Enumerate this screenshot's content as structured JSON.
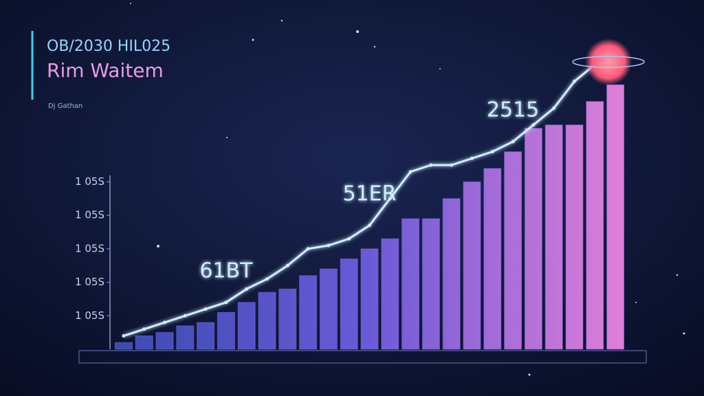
{
  "header": {
    "title": "OB/2030 HIL025",
    "subtitle": "Rim Waitem",
    "caption": "Dj Gathan"
  },
  "chart_data": {
    "type": "bar",
    "categories": [
      null,
      null,
      null,
      null,
      null,
      null,
      null,
      null,
      null,
      null,
      null,
      null,
      null,
      null,
      null,
      null,
      null,
      null,
      null,
      null,
      null,
      null,
      null,
      null,
      null
    ],
    "series": [
      {
        "type": "bar",
        "color": "#7a63d8",
        "values": [
          2,
          4,
          5,
          7,
          8,
          11,
          14,
          17,
          18,
          22,
          24,
          27,
          30,
          33,
          39,
          39,
          45,
          50,
          54,
          59,
          66,
          67,
          67,
          74,
          79
        ]
      },
      {
        "type": "line",
        "color": "#cfeeff",
        "values": [
          4,
          6,
          8,
          10,
          12,
          14,
          18,
          21,
          25,
          30,
          31,
          33,
          37,
          45,
          53,
          55,
          55,
          57,
          59,
          62,
          67,
          72,
          80,
          85,
          null
        ]
      }
    ],
    "ylim": [
      0,
      85
    ],
    "yticks": [
      {
        "value": 10,
        "label": "1 05S"
      },
      {
        "value": 20,
        "label": "1 05S"
      },
      {
        "value": 30,
        "label": "1 05S"
      },
      {
        "value": 40,
        "label": "1 05S"
      },
      {
        "value": 50,
        "label": "1 05S"
      }
    ],
    "annotations": [
      {
        "text": "61BT",
        "index": 5
      },
      {
        "text": "51ER",
        "index": 12
      },
      {
        "text": "2515",
        "index": 19
      }
    ]
  }
}
